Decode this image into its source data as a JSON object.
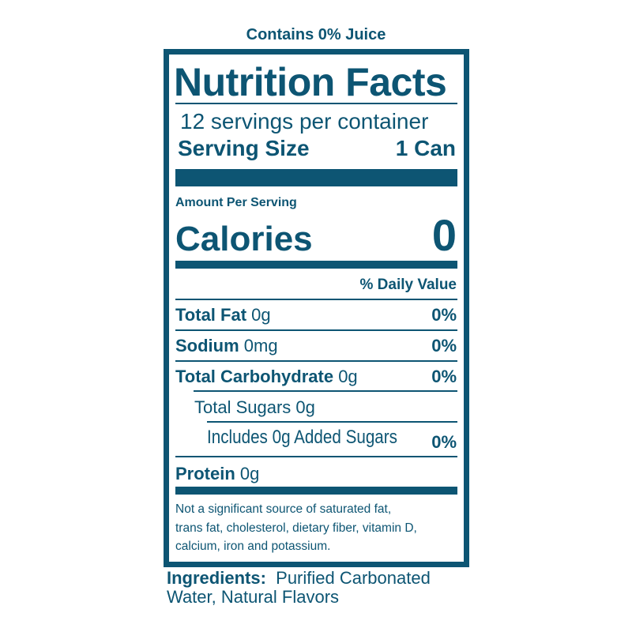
{
  "juice_note": "Contains 0% Juice",
  "title": "Nutrition Facts",
  "servings": "12 servings per container",
  "serving_size": {
    "label": "Serving Size",
    "value": "1 Can"
  },
  "amount_per_serving": "Amount Per Serving",
  "calories": {
    "label": "Calories",
    "value": "0"
  },
  "daily_value_header": "% Daily Value",
  "nutrients": [
    {
      "name": "Total Fat",
      "amount": "0g",
      "dv": "0%"
    },
    {
      "name": "Sodium",
      "amount": "0mg",
      "dv": "0%"
    },
    {
      "name": "Total Carbohydrate",
      "amount": "0g",
      "dv": "0%"
    },
    {
      "name": "Total Sugars 0g"
    },
    {
      "name": "Includes 0g Added Sugars",
      "dv": "0%"
    },
    {
      "name": "Protein",
      "amount": "0g"
    }
  ],
  "footnote": [
    "Not a significant source of saturated fat,",
    "trans fat, cholesterol, dietary fiber, vitamin D,",
    "calcium, iron and potassium."
  ],
  "ingredients": {
    "label": "Ingredients:",
    "line1": "Purified Carbonated",
    "line2": "Water, Natural Flavors"
  },
  "colors": {
    "ink": "#0d5573",
    "background": "#ffffff"
  }
}
